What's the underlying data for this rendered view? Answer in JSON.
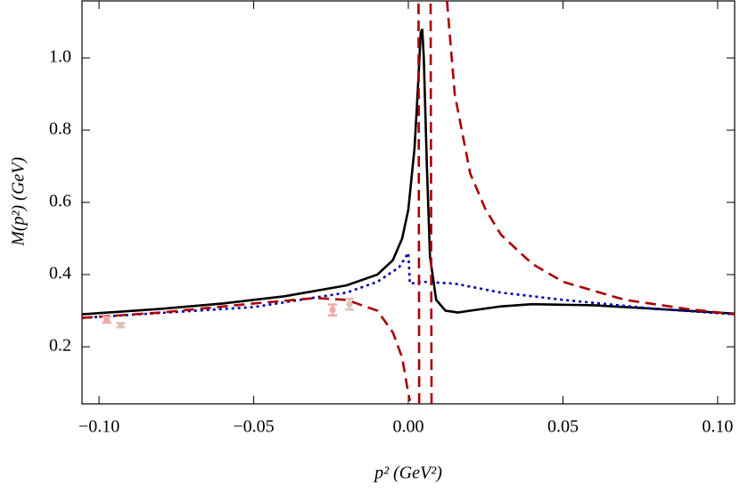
{
  "chart_data": {
    "type": "line",
    "x_label": "p² (GeV²)",
    "y_label": "M(p²) (GeV)",
    "xlim": [
      -0.1055,
      0.1055
    ],
    "ylim": [
      0.042,
      1.158
    ],
    "xticks": [
      {
        "value": -0.1,
        "label": "−0.10"
      },
      {
        "value": -0.05,
        "label": "−0.05"
      },
      {
        "value": 0,
        "label": "0.00"
      },
      {
        "value": 0.05,
        "label": "0.05"
      },
      {
        "value": 0.1,
        "label": "0.10"
      }
    ],
    "yticks": [
      0.2,
      0.4,
      0.6,
      0.8,
      {
        "value": 1.0,
        "label": "1.0"
      }
    ],
    "series": [
      {
        "color": "#000000",
        "style": "solid",
        "x": [
          -0.1055,
          -0.08,
          -0.06,
          -0.04,
          -0.02,
          -0.01,
          -0.005,
          -0.002,
          0.0,
          0.002,
          0.003,
          0.004,
          0.0045,
          0.005,
          0.006,
          0.007,
          0.009,
          0.012,
          0.016,
          0.02,
          0.03,
          0.04,
          0.06,
          0.08,
          0.1055
        ],
        "values": [
          0.29,
          0.305,
          0.32,
          0.34,
          0.37,
          0.4,
          0.44,
          0.5,
          0.58,
          0.75,
          0.9,
          1.07,
          1.08,
          1.0,
          0.7,
          0.45,
          0.33,
          0.3,
          0.295,
          0.3,
          0.312,
          0.318,
          0.315,
          0.305,
          0.292
        ]
      },
      {
        "color": "#0000aa",
        "style": "dotted",
        "x": [
          -0.1055,
          -0.05,
          -0.02,
          -0.01,
          -0.003,
          0.0,
          0.0005,
          0.005,
          0.015,
          0.03,
          0.05,
          0.08,
          0.1055
        ],
        "values": [
          0.28,
          0.31,
          0.35,
          0.38,
          0.42,
          0.46,
          0.375,
          0.38,
          0.375,
          0.35,
          0.33,
          0.305,
          0.29
        ]
      },
      {
        "color": "#aa0000",
        "style": "dashed",
        "x": [
          -0.1055,
          -0.08,
          -0.05,
          -0.03,
          -0.02,
          -0.01,
          -0.005,
          -0.002,
          -0.001,
          0.0,
          0.0005,
          null,
          0.0035,
          0.0033,
          null,
          0.0075,
          0.0072,
          null,
          0.0125,
          0.015,
          0.02,
          0.025,
          0.03,
          0.04,
          0.05,
          0.07,
          0.09,
          0.1055
        ],
        "values": [
          0.28,
          0.295,
          0.32,
          0.335,
          0.33,
          0.3,
          0.24,
          0.17,
          0.12,
          0.07,
          0.05,
          null,
          0.042,
          1.158,
          null,
          0.042,
          1.158,
          null,
          1.158,
          0.9,
          0.68,
          0.58,
          0.51,
          0.43,
          0.38,
          0.33,
          0.305,
          0.29
        ]
      },
      {
        "type": "errorbar",
        "colors": [
          "#f4a6a6",
          "#d9c4b8",
          "#f4a6a6",
          "#d9c4b8"
        ],
        "x": [
          -0.0975,
          -0.093,
          -0.0245,
          -0.019
        ],
        "values": [
          0.275,
          0.26,
          0.302,
          0.318
        ],
        "errors": [
          0.008,
          0.006,
          0.015,
          0.015
        ]
      }
    ]
  }
}
